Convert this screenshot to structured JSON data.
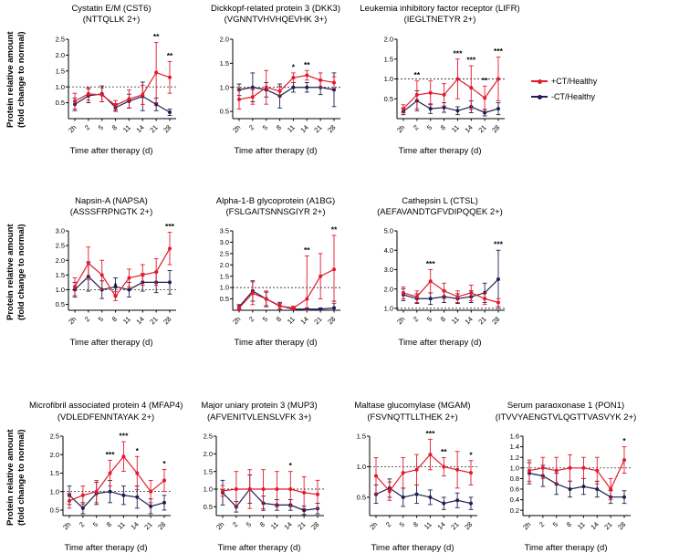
{
  "labels": {
    "y_axis_line1": "Protein relative amount",
    "y_axis_line2": "(fold change to normal)",
    "x_axis": "Time after therapy (d)"
  },
  "legend": {
    "items": [
      {
        "label": "+CT/Healthy",
        "color": "#E4192C"
      },
      {
        "label": "-CT/Healthy",
        "color": "#1F1F52"
      }
    ]
  },
  "chart_data": [
    {
      "type": "line",
      "title": "Cystatin E/M (CST6)",
      "subtitle": "(NTTQLLK 2+)",
      "categories": [
        "2h",
        "2",
        "5",
        "8",
        "11",
        "14",
        "21",
        "28"
      ],
      "xlabel": "Time after therapy (d)",
      "ylabel": "Protein relative amount (fold change to normal)",
      "ylim": [
        0,
        2.5
      ],
      "yticks": [
        0.5,
        1.0,
        1.5,
        2.0,
        2.5
      ],
      "refline": 1.0,
      "series": [
        {
          "name": "+CT/Healthy",
          "color": "#E4192C",
          "values": [
            0.55,
            0.78,
            0.75,
            0.42,
            0.62,
            0.75,
            1.45,
            1.3
          ],
          "err": [
            0.25,
            0.2,
            0.22,
            0.15,
            0.28,
            0.3,
            0.95,
            0.5
          ]
        },
        {
          "name": "-CT/Healthy",
          "color": "#1F1F52",
          "values": [
            0.45,
            0.72,
            0.78,
            0.35,
            0.55,
            0.7,
            0.45,
            0.2
          ],
          "err": [
            0.2,
            0.22,
            0.25,
            0.12,
            0.22,
            0.45,
            0.2,
            0.1
          ]
        }
      ],
      "sig": [
        {
          "i": 6,
          "label": "**"
        },
        {
          "i": 7,
          "label": "**"
        }
      ]
    },
    {
      "type": "line",
      "title": "Dickkopf-related protein 3 (DKK3)",
      "subtitle": "(VGNNTVHVHQEVHK 3+)",
      "categories": [
        "2h",
        "2",
        "5",
        "8",
        "11",
        "14",
        "21",
        "28"
      ],
      "xlabel": "Time after therapy (d)",
      "ylabel": "Protein relative amount (fold change to normal)",
      "ylim": [
        0.35,
        2.0
      ],
      "yticks": [
        0.5,
        1.0,
        1.5,
        2.0
      ],
      "refline": 1.0,
      "series": [
        {
          "name": "+CT/Healthy",
          "color": "#E4192C",
          "values": [
            0.75,
            0.8,
            1.0,
            0.92,
            1.2,
            1.25,
            1.15,
            1.1
          ],
          "err": [
            0.2,
            0.15,
            0.35,
            0.1,
            0.1,
            0.1,
            0.15,
            0.12
          ]
        },
        {
          "name": "-CT/Healthy",
          "color": "#1F1F52",
          "values": [
            0.95,
            1.0,
            0.95,
            0.82,
            1.0,
            1.0,
            1.0,
            0.95
          ],
          "err": [
            0.12,
            0.3,
            0.15,
            0.25,
            0.1,
            0.1,
            0.15,
            0.35
          ]
        }
      ],
      "sig": [
        {
          "i": 4,
          "label": "*"
        },
        {
          "i": 5,
          "label": "**"
        }
      ]
    },
    {
      "type": "line",
      "title": "Leukemia inhibitory factor receptor (LIFR)",
      "subtitle": "(IEGLTNETYR 2+)",
      "categories": [
        "2h",
        "2",
        "5",
        "8",
        "11",
        "14",
        "21",
        "28"
      ],
      "xlabel": "Time after therapy (d)",
      "ylabel": "Protein relative amount (fold change to normal)",
      "ylim": [
        0,
        2.0
      ],
      "yticks": [
        0.5,
        1.0,
        1.5,
        2.0
      ],
      "refline": 1.0,
      "series": [
        {
          "name": "+CT/Healthy",
          "color": "#E4192C",
          "values": [
            0.25,
            0.6,
            0.65,
            0.6,
            1.0,
            0.78,
            0.52,
            1.0
          ],
          "err": [
            0.1,
            0.35,
            0.3,
            0.28,
            0.5,
            0.55,
            0.3,
            0.55
          ]
        },
        {
          "name": "-CT/Healthy",
          "color": "#1F1F52",
          "values": [
            0.18,
            0.45,
            0.25,
            0.28,
            0.2,
            0.3,
            0.15,
            0.25
          ],
          "err": [
            0.08,
            0.25,
            0.12,
            0.12,
            0.1,
            0.15,
            0.08,
            0.15
          ]
        }
      ],
      "sig": [
        {
          "i": 1,
          "label": "**"
        },
        {
          "i": 4,
          "label": "***"
        },
        {
          "i": 5,
          "label": "***"
        },
        {
          "i": 6,
          "label": "**"
        },
        {
          "i": 7,
          "label": "***"
        }
      ]
    },
    {
      "type": "line",
      "title": "Napsin-A (NAPSA)",
      "subtitle": "(ASSSFRPNGTK 2+)",
      "categories": [
        "2h",
        "2",
        "5",
        "8",
        "11",
        "14",
        "21",
        "28"
      ],
      "xlabel": "Time after therapy (d)",
      "ylabel": "Protein relative amount (fold change to normal)",
      "ylim": [
        0.3,
        3.0
      ],
      "yticks": [
        0.5,
        1.0,
        1.5,
        2.0,
        2.5,
        3.0
      ],
      "refline": 1.0,
      "series": [
        {
          "name": "+CT/Healthy",
          "color": "#E4192C",
          "values": [
            1.1,
            1.9,
            1.5,
            0.78,
            1.4,
            1.5,
            1.6,
            2.4
          ],
          "err": [
            0.3,
            0.55,
            0.5,
            0.15,
            0.3,
            0.35,
            0.45,
            0.55
          ]
        },
        {
          "name": "-CT/Healthy",
          "color": "#1F1F52",
          "values": [
            1.0,
            1.45,
            1.0,
            1.1,
            1.0,
            1.25,
            1.25,
            1.25
          ],
          "err": [
            0.25,
            0.5,
            0.3,
            0.3,
            0.25,
            0.3,
            0.35,
            0.4
          ]
        }
      ],
      "sig": [
        {
          "i": 3,
          "label": "*"
        },
        {
          "i": 7,
          "label": "***"
        }
      ]
    },
    {
      "type": "line",
      "title": "Alpha-1-B glycoprotein (A1BG)",
      "subtitle": "(FSLGAITSNNSGIYR 2+)",
      "categories": [
        "2h",
        "2",
        "5",
        "8",
        "11",
        "14",
        "21",
        "28"
      ],
      "xlabel": "Time after therapy (d)",
      "ylabel": "Protein relative amount (fold change to normal)",
      "ylim": [
        0,
        3.5
      ],
      "yticks": [
        0.5,
        1.0,
        1.5,
        2.0,
        2.5,
        3.0,
        3.5
      ],
      "refline": 1.0,
      "series": [
        {
          "name": "+CT/Healthy",
          "color": "#E4192C",
          "values": [
            0.1,
            0.75,
            0.5,
            0.18,
            0.1,
            0.5,
            1.5,
            1.8
          ],
          "err": [
            0.08,
            0.5,
            0.35,
            0.12,
            0.08,
            1.9,
            1.0,
            1.5
          ]
        },
        {
          "name": "-CT/Healthy",
          "color": "#1F1F52",
          "values": [
            0.15,
            0.85,
            0.5,
            0.2,
            0.05,
            0.05,
            0.05,
            0.1
          ],
          "err": [
            0.1,
            0.45,
            0.3,
            0.15,
            0.05,
            0.05,
            0.05,
            0.3
          ]
        }
      ],
      "sig": [
        {
          "i": 5,
          "label": "**"
        },
        {
          "i": 7,
          "label": "**"
        }
      ]
    },
    {
      "type": "line",
      "title": "Cathepsin L (CTSL)",
      "subtitle": "(AEFAVANDTGFVDIPQQEK 2+)",
      "categories": [
        "2h",
        "2",
        "5",
        "8",
        "11",
        "14",
        "21",
        "28"
      ],
      "xlabel": "Time after therapy (d)",
      "ylabel": "Protein relative amount (fold change to normal)",
      "ylim": [
        0.9,
        5.0
      ],
      "yticks": [
        1.0,
        2.0,
        3.0,
        4.0,
        5.0
      ],
      "refline": 1.0,
      "series": [
        {
          "name": "+CT/Healthy",
          "color": "#E4192C",
          "values": [
            1.8,
            1.6,
            2.4,
            1.9,
            1.6,
            1.8,
            1.5,
            1.3
          ],
          "err": [
            0.3,
            0.3,
            0.6,
            0.4,
            0.3,
            0.4,
            0.3,
            0.2
          ]
        },
        {
          "name": "-CT/Healthy",
          "color": "#1F1F52",
          "values": [
            1.7,
            1.5,
            1.5,
            1.6,
            1.5,
            1.6,
            1.8,
            2.5
          ],
          "err": [
            0.3,
            0.25,
            0.3,
            0.3,
            0.25,
            0.3,
            0.5,
            1.5
          ]
        }
      ],
      "sig": [
        {
          "i": 2,
          "label": "***"
        },
        {
          "i": 7,
          "label": "***",
          "series": 1
        }
      ]
    },
    {
      "type": "line",
      "title": "Microfibril associated protein 4 (MFAP4)",
      "subtitle": "(VDLEDFENNTAYAK 2+)",
      "categories": [
        "2h",
        "2",
        "5",
        "8",
        "11",
        "14",
        "21",
        "28"
      ],
      "xlabel": "Time after therapy (d)",
      "ylabel": "Protein relative amount (fold change to normal)",
      "ylim": [
        0.35,
        2.5
      ],
      "yticks": [
        0.5,
        1.0,
        1.5,
        2.0,
        2.5
      ],
      "refline": 1.0,
      "series": [
        {
          "name": "+CT/Healthy",
          "color": "#E4192C",
          "values": [
            0.75,
            0.9,
            1.0,
            1.5,
            1.95,
            1.5,
            1.0,
            1.3
          ],
          "err": [
            0.2,
            0.25,
            0.3,
            0.35,
            0.4,
            0.45,
            0.3,
            0.3
          ]
        },
        {
          "name": "-CT/Healthy",
          "color": "#1F1F52",
          "values": [
            0.9,
            0.55,
            0.95,
            1.0,
            0.9,
            0.85,
            0.6,
            0.7
          ],
          "err": [
            0.25,
            0.15,
            0.3,
            0.3,
            0.25,
            0.3,
            0.2,
            0.2
          ]
        }
      ],
      "sig": [
        {
          "i": 3,
          "label": "***"
        },
        {
          "i": 4,
          "label": "***"
        },
        {
          "i": 5,
          "label": "*"
        },
        {
          "i": 7,
          "label": "*"
        }
      ]
    },
    {
      "type": "line",
      "title": "Major uniary protein 3 (MUP3)",
      "subtitle": "(AFVENITVLENSLVFK 3+)",
      "categories": [
        "2h",
        "2",
        "5",
        "8",
        "11",
        "14",
        "21",
        "28"
      ],
      "xlabel": "Time after therapy (d)",
      "ylabel": "Protein relative amount (fold change to normal)",
      "ylim": [
        0.25,
        2.5
      ],
      "yticks": [
        0.5,
        1.0,
        1.5,
        2.0,
        2.5
      ],
      "refline": 1.0,
      "series": [
        {
          "name": "+CT/Healthy",
          "color": "#E4192C",
          "values": [
            0.95,
            1.0,
            1.0,
            1.0,
            1.0,
            1.0,
            0.9,
            0.85
          ],
          "err": [
            0.15,
            0.5,
            0.55,
            0.55,
            0.5,
            0.5,
            0.45,
            0.4
          ]
        },
        {
          "name": "-CT/Healthy",
          "color": "#1F1F52",
          "values": [
            0.9,
            0.5,
            1.0,
            0.6,
            0.55,
            0.55,
            0.4,
            0.45
          ],
          "err": [
            0.35,
            0.15,
            0.4,
            0.2,
            0.15,
            0.15,
            0.12,
            0.15
          ]
        }
      ],
      "sig": [
        {
          "i": 5,
          "label": "*"
        }
      ]
    },
    {
      "type": "line",
      "title": "Maltase glucomylase (MGAM)",
      "subtitle": "(FSVNQTTLLTHEK 2+)",
      "categories": [
        "2h",
        "2",
        "5",
        "8",
        "11",
        "14",
        "21",
        "28"
      ],
      "xlabel": "Time after therapy (d)",
      "ylabel": "Protein relative amount (fold change to normal)",
      "ylim": [
        0.2,
        1.5
      ],
      "yticks": [
        0.5,
        1.0,
        1.5
      ],
      "refline": 1.0,
      "series": [
        {
          "name": "+CT/Healthy",
          "color": "#E4192C",
          "values": [
            0.85,
            0.6,
            0.9,
            0.95,
            1.2,
            1.0,
            0.95,
            0.9
          ],
          "err": [
            0.3,
            0.15,
            0.25,
            0.25,
            0.25,
            0.15,
            0.3,
            0.2
          ]
        },
        {
          "name": "-CT/Healthy",
          "color": "#1F1F52",
          "values": [
            0.55,
            0.65,
            0.5,
            0.55,
            0.5,
            0.4,
            0.45,
            0.4
          ],
          "err": [
            0.15,
            0.15,
            0.15,
            0.15,
            0.12,
            0.1,
            0.12,
            0.1
          ]
        }
      ],
      "sig": [
        {
          "i": 4,
          "label": "***"
        },
        {
          "i": 5,
          "label": "**"
        },
        {
          "i": 7,
          "label": "*"
        }
      ]
    },
    {
      "type": "line",
      "title": "Serum paraoxonase 1 (PON1)",
      "subtitle": "(ITVVYAENGTVLQGTTVASVYK 2+)",
      "categories": [
        "2h",
        "2",
        "5",
        "8",
        "11",
        "14",
        "21",
        "28"
      ],
      "xlabel": "Time after therapy (d)",
      "ylabel": "Protein relative amount (fold change to normal)",
      "ylim": [
        0.1,
        1.6
      ],
      "yticks": [
        0.2,
        0.4,
        0.6,
        0.8,
        1.0,
        1.2,
        1.4,
        1.6
      ],
      "refline": 1.0,
      "series": [
        {
          "name": "+CT/Healthy",
          "color": "#E4192C",
          "values": [
            0.95,
            1.0,
            0.95,
            1.0,
            1.0,
            0.95,
            0.6,
            1.15
          ],
          "err": [
            0.2,
            0.2,
            0.25,
            0.25,
            0.2,
            0.25,
            0.2,
            0.25
          ]
        },
        {
          "name": "-CT/Healthy",
          "color": "#1F1F52",
          "values": [
            0.9,
            0.85,
            0.7,
            0.6,
            0.65,
            0.6,
            0.45,
            0.45
          ],
          "err": [
            0.2,
            0.2,
            0.2,
            0.15,
            0.15,
            0.15,
            0.12,
            0.12
          ]
        }
      ],
      "sig": [
        {
          "i": 7,
          "label": "*"
        }
      ]
    }
  ]
}
